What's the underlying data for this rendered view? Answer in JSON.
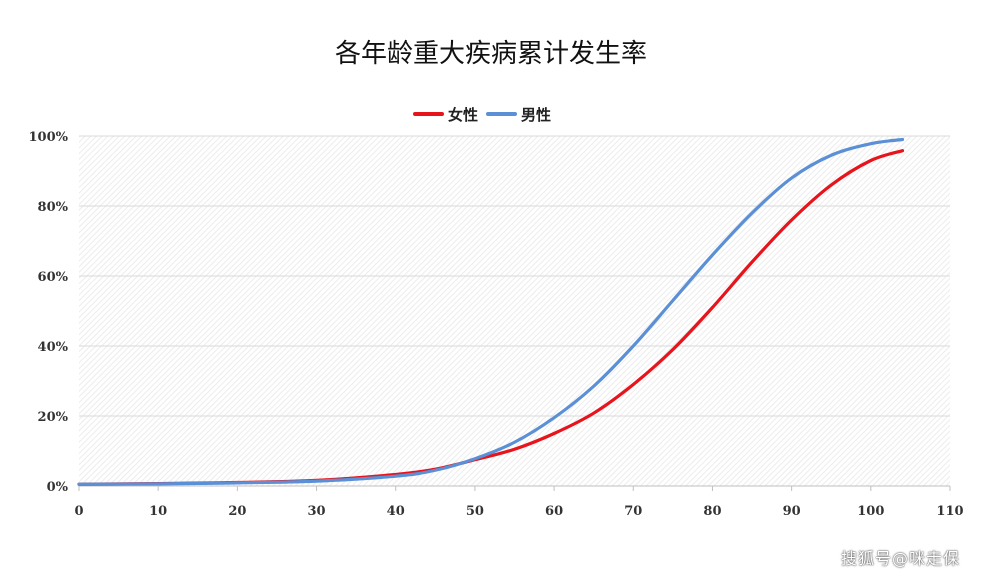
{
  "watermark": "搜狐号@咪走保",
  "chart_data": {
    "type": "line",
    "title": "各年龄重大疾病累计发生率",
    "xlabel": "",
    "ylabel": "",
    "xlim": [
      0,
      110
    ],
    "ylim": [
      0,
      1
    ],
    "x_ticks": [
      "0",
      "10",
      "20",
      "30",
      "40",
      "50",
      "60",
      "70",
      "80",
      "90",
      "100",
      "110"
    ],
    "y_ticks": [
      "0%",
      "20%",
      "40%",
      "60%",
      "80%",
      "100%"
    ],
    "grid": true,
    "legend_position": "top",
    "series": [
      {
        "name": "女性",
        "color": "#e8141c",
        "points": [
          [
            0,
            0.005
          ],
          [
            10,
            0.007
          ],
          [
            20,
            0.01
          ],
          [
            30,
            0.016
          ],
          [
            40,
            0.033
          ],
          [
            45,
            0.048
          ],
          [
            50,
            0.075
          ],
          [
            55,
            0.105
          ],
          [
            60,
            0.15
          ],
          [
            65,
            0.208
          ],
          [
            70,
            0.29
          ],
          [
            75,
            0.39
          ],
          [
            80,
            0.51
          ],
          [
            85,
            0.64
          ],
          [
            90,
            0.76
          ],
          [
            95,
            0.86
          ],
          [
            100,
            0.93
          ],
          [
            104,
            0.958
          ]
        ]
      },
      {
        "name": "男性",
        "color": "#5b8fd6",
        "points": [
          [
            0,
            0.005
          ],
          [
            10,
            0.006
          ],
          [
            20,
            0.009
          ],
          [
            30,
            0.014
          ],
          [
            40,
            0.028
          ],
          [
            45,
            0.045
          ],
          [
            50,
            0.078
          ],
          [
            55,
            0.125
          ],
          [
            60,
            0.195
          ],
          [
            65,
            0.285
          ],
          [
            70,
            0.4
          ],
          [
            75,
            0.53
          ],
          [
            80,
            0.66
          ],
          [
            85,
            0.78
          ],
          [
            90,
            0.88
          ],
          [
            95,
            0.945
          ],
          [
            100,
            0.978
          ],
          [
            104,
            0.99
          ]
        ]
      }
    ]
  }
}
